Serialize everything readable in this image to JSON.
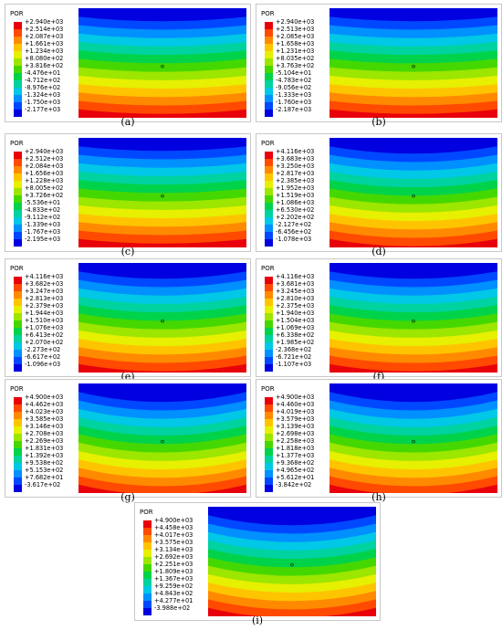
{
  "legend_colors": [
    "#e8000b",
    "#ff4a00",
    "#ff8a00",
    "#ffc400",
    "#e6f000",
    "#9ce600",
    "#45d800",
    "#00d34a",
    "#00d2a0",
    "#00c8e6",
    "#0090ff",
    "#0048ff",
    "#0000e0"
  ],
  "panels": [
    {
      "caption": "(a)",
      "title": "POR",
      "values": [
        "+2.940e+03",
        "+2.514e+03",
        "+2.087e+03",
        "+1.661e+03",
        "+1.234e+03",
        "+8.080e+02",
        "+3.816e+02",
        "-4.476e+01",
        "-4.712e+02",
        "-8.976e+02",
        "-1.324e+03",
        "-1.750e+03",
        "-2.177e+03"
      ]
    },
    {
      "caption": "(b)",
      "title": "POR",
      "values": [
        "+2.940e+03",
        "+2.513e+03",
        "+2.085e+03",
        "+1.658e+03",
        "+1.231e+03",
        "+8.035e+02",
        "+3.763e+02",
        "-5.104e+01",
        "-4.783e+02",
        "-9.056e+02",
        "-1.333e+03",
        "-1.760e+03",
        "-2.187e+03"
      ]
    },
    {
      "caption": "(c)",
      "title": "POR",
      "values": [
        "+2.940e+03",
        "+2.512e+03",
        "+2.084e+03",
        "+1.656e+03",
        "+1.228e+03",
        "+8.005e+02",
        "+3.726e+02",
        "-5.536e+01",
        "-4.833e+02",
        "-9.112e+02",
        "-1.339e+03",
        "-1.767e+03",
        "-2.195e+03"
      ]
    },
    {
      "caption": "(d)",
      "title": "POR",
      "values": [
        "+4.116e+03",
        "+3.683e+03",
        "+3.250e+03",
        "+2.817e+03",
        "+2.385e+03",
        "+1.952e+03",
        "+1.519e+03",
        "+1.086e+03",
        "+6.530e+02",
        "+2.202e+02",
        "-2.127e+02",
        "-6.456e+02",
        "-1.078e+03"
      ]
    },
    {
      "caption": "(e)",
      "title": "POR",
      "values": [
        "+4.116e+03",
        "+3.682e+03",
        "+3.247e+03",
        "+2.813e+03",
        "+2.379e+03",
        "+1.944e+03",
        "+1.510e+03",
        "+1.076e+03",
        "+6.413e+02",
        "+2.070e+02",
        "-2.273e+02",
        "-6.617e+02",
        "-1.096e+03"
      ]
    },
    {
      "caption": "(f)",
      "title": "POR",
      "values": [
        "+4.116e+03",
        "+3.681e+03",
        "+3.245e+03",
        "+2.810e+03",
        "+2.375e+03",
        "+1.940e+03",
        "+1.504e+03",
        "+1.069e+03",
        "+6.338e+02",
        "+1.985e+02",
        "-2.368e+02",
        "-6.721e+02",
        "-1.107e+03"
      ]
    },
    {
      "caption": "(g)",
      "title": "POR",
      "values": [
        "+4.900e+03",
        "+4.462e+03",
        "+4.023e+03",
        "+3.585e+03",
        "+3.146e+03",
        "+2.708e+03",
        "+2.269e+03",
        "+1.831e+03",
        "+1.392e+03",
        "+9.538e+02",
        "+5.153e+02",
        "+7.682e+01",
        "-3.617e+02"
      ]
    },
    {
      "caption": "(h)",
      "title": "POR",
      "values": [
        "+4.900e+03",
        "+4.460e+03",
        "+4.019e+03",
        "+3.579e+03",
        "+3.139e+03",
        "+2.698e+03",
        "+2.258e+03",
        "+1.818e+03",
        "+1.377e+03",
        "+9.368e+02",
        "+4.965e+02",
        "+5.612e+01",
        "-3.842e+02"
      ]
    },
    {
      "caption": "(i)",
      "title": "POR",
      "values": [
        "+4.900e+03",
        "+4.458e+03",
        "+4.017e+03",
        "+3.575e+03",
        "+3.134e+03",
        "+2.692e+03",
        "+2.251e+03",
        "+1.809e+03",
        "+1.367e+03",
        "+9.259e+02",
        "+4.843e+02",
        "+4.277e+01",
        "-3.988e+02"
      ]
    }
  ]
}
